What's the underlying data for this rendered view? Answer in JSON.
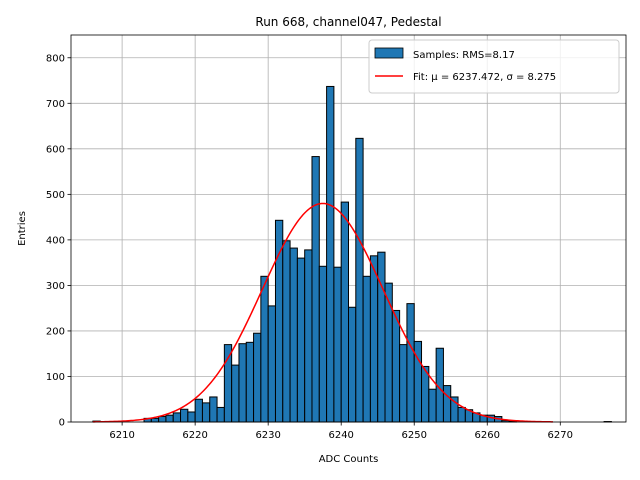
{
  "chart_data": {
    "type": "bar",
    "title": "Run 668, channel047, Pedestal",
    "xlabel": "ADC Counts",
    "ylabel": "Entries",
    "xlim": [
      6203,
      6279
    ],
    "ylim": [
      0,
      850
    ],
    "xticks": [
      6210,
      6220,
      6230,
      6240,
      6250,
      6260,
      6270
    ],
    "yticks": [
      0,
      100,
      200,
      300,
      400,
      500,
      600,
      700,
      800
    ],
    "grid": true,
    "legend_position": "top-right",
    "bin_width": 1,
    "series": [
      {
        "name": "Samples: RMS=8.17",
        "color": "#1f77b4",
        "edgecolor": "#000000",
        "bins": [
          [
            6206,
            2
          ],
          [
            6207,
            0
          ],
          [
            6208,
            0
          ],
          [
            6209,
            0
          ],
          [
            6210,
            0
          ],
          [
            6211,
            0
          ],
          [
            6212,
            0
          ],
          [
            6213,
            8
          ],
          [
            6214,
            8
          ],
          [
            6215,
            12
          ],
          [
            6216,
            15
          ],
          [
            6217,
            20
          ],
          [
            6218,
            28
          ],
          [
            6219,
            22
          ],
          [
            6220,
            50
          ],
          [
            6221,
            42
          ],
          [
            6222,
            55
          ],
          [
            6223,
            32
          ],
          [
            6224,
            170
          ],
          [
            6225,
            125
          ],
          [
            6226,
            172
          ],
          [
            6227,
            175
          ],
          [
            6228,
            195
          ],
          [
            6229,
            320
          ],
          [
            6230,
            255
          ],
          [
            6231,
            443
          ],
          [
            6232,
            398
          ],
          [
            6233,
            382
          ],
          [
            6234,
            360
          ],
          [
            6235,
            378
          ],
          [
            6236,
            583
          ],
          [
            6237,
            342
          ],
          [
            6238,
            737
          ],
          [
            6239,
            340
          ],
          [
            6240,
            483
          ],
          [
            6241,
            252
          ],
          [
            6242,
            623
          ],
          [
            6243,
            320
          ],
          [
            6244,
            365
          ],
          [
            6245,
            373
          ],
          [
            6246,
            305
          ],
          [
            6247,
            245
          ],
          [
            6248,
            170
          ],
          [
            6249,
            260
          ],
          [
            6250,
            177
          ],
          [
            6251,
            122
          ],
          [
            6252,
            72
          ],
          [
            6253,
            162
          ],
          [
            6254,
            80
          ],
          [
            6255,
            55
          ],
          [
            6256,
            32
          ],
          [
            6257,
            27
          ],
          [
            6258,
            20
          ],
          [
            6259,
            15
          ],
          [
            6260,
            15
          ],
          [
            6261,
            12
          ],
          [
            6262,
            3
          ],
          [
            6263,
            2
          ],
          [
            6264,
            0
          ],
          [
            6265,
            0
          ],
          [
            6266,
            0
          ],
          [
            6267,
            0
          ],
          [
            6268,
            0
          ],
          [
            6269,
            0
          ],
          [
            6270,
            0
          ],
          [
            6271,
            0
          ],
          [
            6272,
            0
          ],
          [
            6273,
            0
          ],
          [
            6274,
            0
          ],
          [
            6275,
            0
          ],
          [
            6276,
            1
          ]
        ]
      },
      {
        "name": "Fit: μ = 6237.472, σ = 8.275",
        "type": "line",
        "color": "#ff0000",
        "mu": 6237.472,
        "sigma": 8.275,
        "amplitude": 480,
        "x_range": [
          6206,
          6269
        ]
      }
    ]
  }
}
